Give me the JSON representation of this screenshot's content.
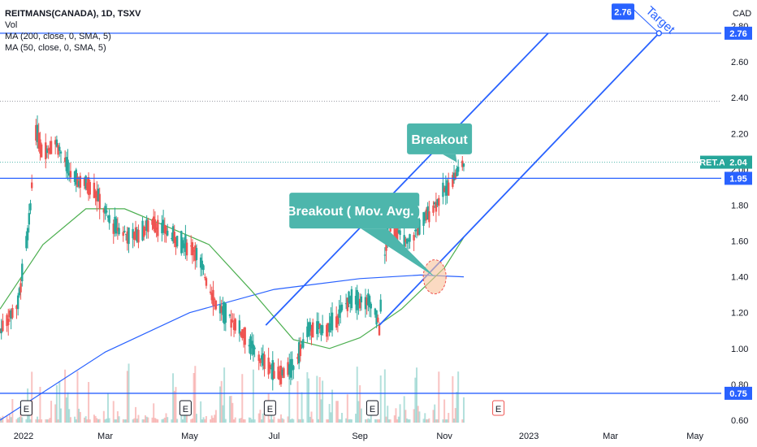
{
  "legend": {
    "symbol": "REITMANS(CANADA), 1D, TSXV",
    "vol": "Vol",
    "ma200": "MA (200, close, 0, SMA, 5)",
    "ma50": "MA (50, close, 0, SMA, 5)"
  },
  "currency": "CAD",
  "colors": {
    "up": "#26a69a",
    "down": "#ef5350",
    "ma200": "#2962ff",
    "ma50": "#4caf50",
    "drawing": "#2962ff",
    "callout": "#4db6ac",
    "highlight": "#f9c29a"
  },
  "chart_data": {
    "type": "candlestick",
    "y_axis": {
      "min": 0.55,
      "max": 2.9,
      "ticks": [
        0.6,
        0.8,
        1.0,
        1.2,
        1.4,
        1.6,
        1.8,
        2.0,
        2.2,
        2.4,
        2.6,
        2.8
      ],
      "tick_labels": [
        "0.60",
        "0.80",
        "1.00",
        "1.20",
        "1.40",
        "1.60",
        "1.80",
        "2.00",
        "2.20",
        "2.40",
        "2.60",
        "2.80"
      ]
    },
    "x_axis": {
      "start": "2021-12-15",
      "end": "2023-05-20",
      "labels": [
        {
          "date": "2022-01-01",
          "text": "2022"
        },
        {
          "date": "2022-03-01",
          "text": "Mar"
        },
        {
          "date": "2022-05-01",
          "text": "May"
        },
        {
          "date": "2022-07-01",
          "text": "Jul"
        },
        {
          "date": "2022-09-01",
          "text": "Sep"
        },
        {
          "date": "2022-11-01",
          "text": "Nov"
        },
        {
          "date": "2023-01-01",
          "text": "2023"
        },
        {
          "date": "2023-03-01",
          "text": "Mar"
        },
        {
          "date": "2023-05-01",
          "text": "May"
        }
      ]
    },
    "horizontal_levels": [
      {
        "value": 2.76,
        "label": "2.76"
      },
      {
        "value": 1.95,
        "label": "1.95"
      },
      {
        "value": 0.75,
        "label": "0.75"
      }
    ],
    "last_price": {
      "value": 2.04,
      "symbol": "RET.A",
      "label": "2.04"
    },
    "dotted_levels": [
      2.38,
      2.04
    ],
    "price_anchors": [
      {
        "date": "2021-12-15",
        "close": 1.1
      },
      {
        "date": "2021-12-28",
        "close": 1.25
      },
      {
        "date": "2022-01-05",
        "close": 1.7
      },
      {
        "date": "2022-01-10",
        "close": 2.22
      },
      {
        "date": "2022-01-14",
        "close": 2.1
      },
      {
        "date": "2022-01-25",
        "close": 2.15
      },
      {
        "date": "2022-02-05",
        "close": 1.95
      },
      {
        "date": "2022-02-20",
        "close": 1.9
      },
      {
        "date": "2022-03-05",
        "close": 1.7
      },
      {
        "date": "2022-03-20",
        "close": 1.62
      },
      {
        "date": "2022-04-05",
        "close": 1.7
      },
      {
        "date": "2022-04-20",
        "close": 1.62
      },
      {
        "date": "2022-05-05",
        "close": 1.55
      },
      {
        "date": "2022-05-20",
        "close": 1.25
      },
      {
        "date": "2022-06-05",
        "close": 1.12
      },
      {
        "date": "2022-06-20",
        "close": 0.95
      },
      {
        "date": "2022-07-05",
        "close": 0.85
      },
      {
        "date": "2022-07-15",
        "close": 0.9
      },
      {
        "date": "2022-07-25",
        "close": 1.1
      },
      {
        "date": "2022-08-10",
        "close": 1.12
      },
      {
        "date": "2022-08-25",
        "close": 1.28
      },
      {
        "date": "2022-09-10",
        "close": 1.25
      },
      {
        "date": "2022-09-15",
        "close": 1.12
      },
      {
        "date": "2022-09-18",
        "close": 1.45
      },
      {
        "date": "2022-09-22",
        "close": 1.7
      },
      {
        "date": "2022-10-05",
        "close": 1.58
      },
      {
        "date": "2022-10-20",
        "close": 1.75
      },
      {
        "date": "2022-11-05",
        "close": 1.92
      },
      {
        "date": "2022-11-15",
        "close": 2.04
      }
    ],
    "ma200_points": [
      {
        "date": "2021-12-15",
        "value": 0.6
      },
      {
        "date": "2022-03-01",
        "value": 0.98
      },
      {
        "date": "2022-05-01",
        "value": 1.2
      },
      {
        "date": "2022-07-01",
        "value": 1.33
      },
      {
        "date": "2022-09-01",
        "value": 1.39
      },
      {
        "date": "2022-10-15",
        "value": 1.41
      },
      {
        "date": "2022-11-15",
        "value": 1.4
      }
    ],
    "ma50_points": [
      {
        "date": "2021-12-15",
        "value": 1.22
      },
      {
        "date": "2022-01-15",
        "value": 1.58
      },
      {
        "date": "2022-02-15",
        "value": 1.78
      },
      {
        "date": "2022-03-15",
        "value": 1.78
      },
      {
        "date": "2022-04-15",
        "value": 1.68
      },
      {
        "date": "2022-05-15",
        "value": 1.58
      },
      {
        "date": "2022-06-15",
        "value": 1.32
      },
      {
        "date": "2022-07-15",
        "value": 1.05
      },
      {
        "date": "2022-08-10",
        "value": 1.0
      },
      {
        "date": "2022-09-01",
        "value": 1.06
      },
      {
        "date": "2022-10-01",
        "value": 1.22
      },
      {
        "date": "2022-11-01",
        "value": 1.45
      },
      {
        "date": "2022-11-15",
        "value": 1.62
      }
    ],
    "channel_lines": [
      {
        "from": {
          "date": "2022-06-25",
          "value": 1.13
        },
        "to": {
          "date": "2023-01-15",
          "value": 2.76
        }
      },
      {
        "from": {
          "date": "2022-09-15",
          "value": 1.13
        },
        "to": {
          "date": "2023-04-05",
          "value": 2.76
        }
      }
    ],
    "target_line": {
      "from": {
        "date": "2023-03-18",
        "value": 2.89
      },
      "to": {
        "date": "2023-04-05",
        "value": 2.76
      }
    },
    "earnings_markers": [
      "2022-01-03",
      "2022-04-28",
      "2022-06-28",
      "2022-09-10"
    ],
    "future_earnings_marker": "2022-12-10",
    "annotations": [
      {
        "text": "Breakout",
        "label_at": {
          "date": "2022-10-05",
          "value": 2.17
        },
        "point": {
          "date": "2022-11-10",
          "value": 2.04
        }
      },
      {
        "text": "Breakout ( Mov. Avg. )",
        "label_at": {
          "date": "2022-07-12",
          "value": 1.77
        },
        "point": {
          "date": "2022-10-25",
          "value": 1.4
        }
      },
      {
        "text": "Target",
        "label_at": {
          "date": "2023-03-26",
          "value": 2.88
        }
      },
      {
        "text": "2.76",
        "label_at": {
          "date": "2023-03-10",
          "value": 2.88
        }
      }
    ]
  }
}
